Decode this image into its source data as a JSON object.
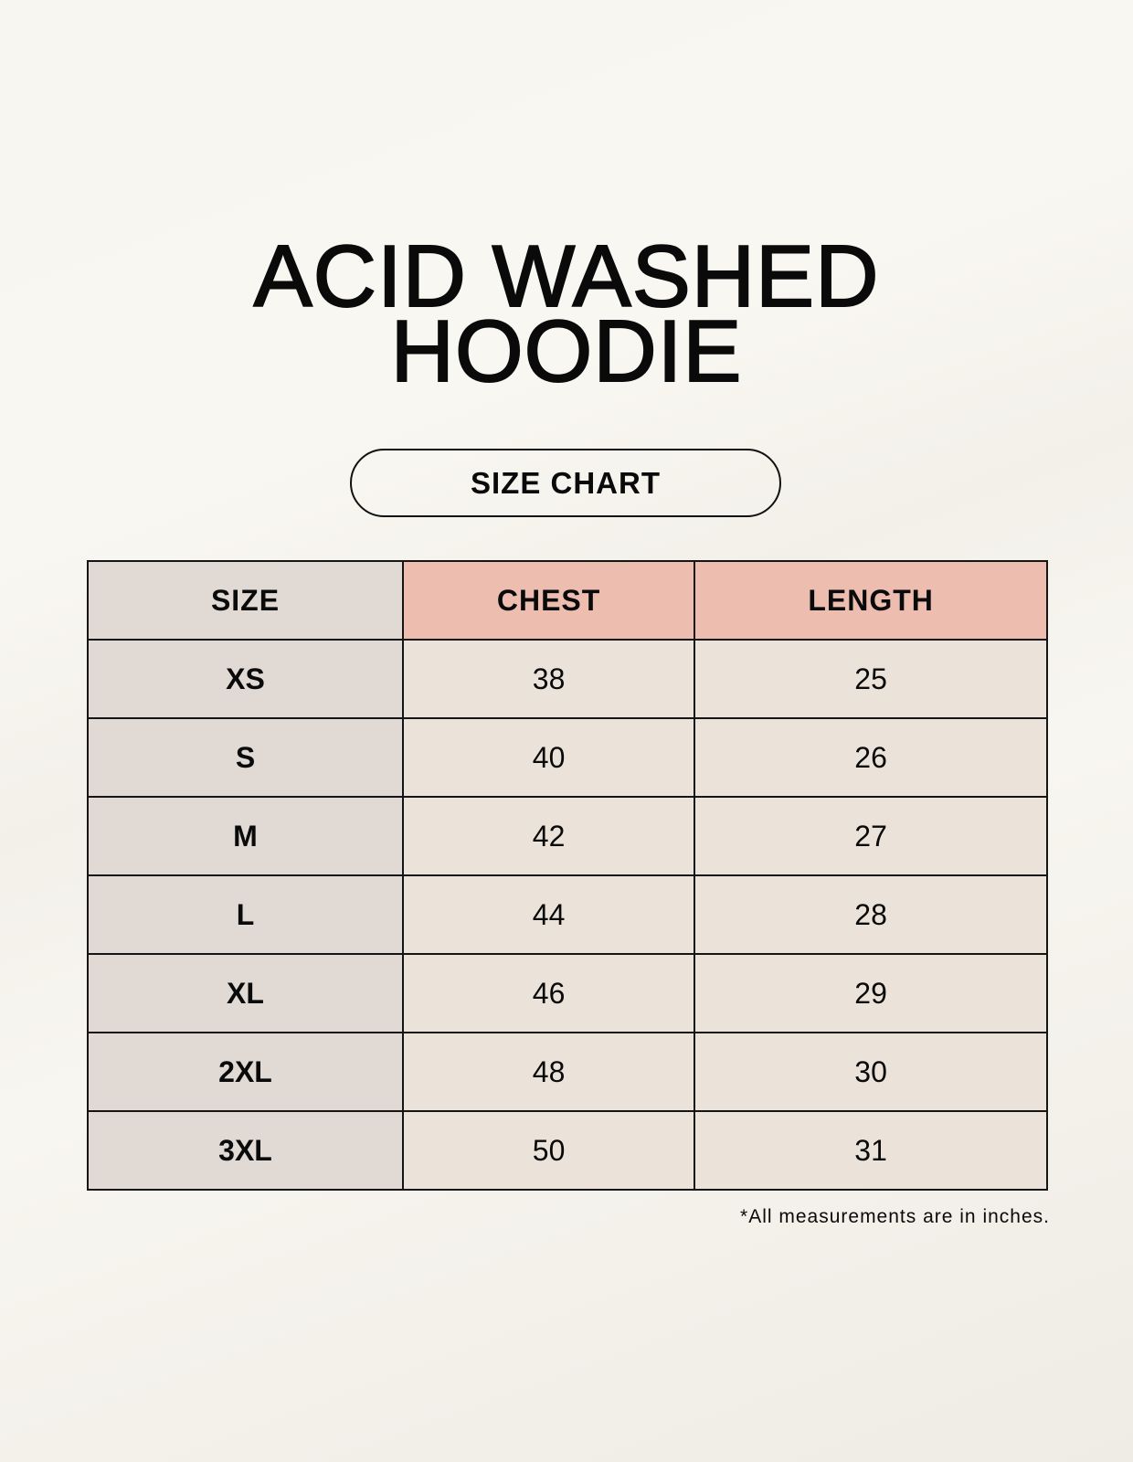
{
  "title": {
    "line1": "ACID WASHED",
    "line2": "HOODIE"
  },
  "subtitle": "SIZE CHART",
  "table": {
    "headers": [
      "SIZE",
      "CHEST",
      "LENGTH"
    ],
    "rows": [
      [
        "XS",
        "38",
        "25"
      ],
      [
        "S",
        "40",
        "26"
      ],
      [
        "M",
        "42",
        "27"
      ],
      [
        "L",
        "44",
        "28"
      ],
      [
        "XL",
        "46",
        "29"
      ],
      [
        "2XL",
        "48",
        "30"
      ],
      [
        "3XL",
        "50",
        "31"
      ]
    ]
  },
  "footnote": "*All measurements are in inches.",
  "colors": {
    "size_column": "#e0d9d4",
    "header_accent": "#edbdb0",
    "cell": "#ebe3d9"
  }
}
